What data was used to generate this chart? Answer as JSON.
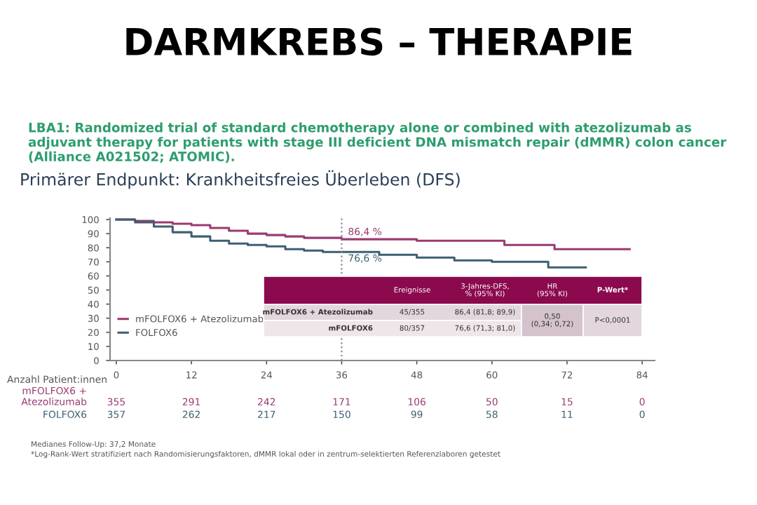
{
  "chart_data": {
    "type": "step",
    "title": "DARMKREBS – THERAPIE",
    "subtitle": "LBA1: Randomized trial of standard chemotherapy alone or combined with atezolizumab as adjuvant therapy for patients with stage III deficient DNA mismatch repair (dMMR) colon cancer (Alliance A021502; ATOMIC).",
    "series": [
      {
        "name": "mFOLFOX6 + Atezolizumab",
        "color": "#9b3a72",
        "x": [
          0,
          3,
          6,
          9,
          12,
          15,
          18,
          21,
          24,
          27,
          30,
          33,
          36,
          42,
          48,
          54,
          62,
          70,
          82
        ],
        "values": [
          100,
          99,
          98,
          97,
          96,
          94,
          92,
          90,
          89,
          88,
          87,
          87,
          86,
          86,
          85,
          85,
          82,
          79,
          79
        ]
      },
      {
        "name": "FOLFOX6",
        "color": "#3e5f73",
        "x": [
          0,
          3,
          6,
          9,
          12,
          15,
          18,
          21,
          24,
          27,
          30,
          33,
          36,
          42,
          48,
          54,
          60,
          69,
          75
        ],
        "values": [
          100,
          98,
          95,
          91,
          88,
          85,
          83,
          82,
          81,
          79,
          78,
          77,
          77,
          75,
          73,
          71,
          70,
          66,
          66
        ]
      }
    ],
    "xlim": [
      -1,
      86
    ],
    "ylim": [
      0,
      101
    ],
    "xticks": [
      0,
      12,
      24,
      36,
      48,
      60,
      72,
      84
    ],
    "yticks": [
      0,
      10,
      20,
      30,
      40,
      50,
      60,
      70,
      80,
      90,
      100
    ],
    "ref_lines": [
      {
        "axis": "x",
        "value": 36,
        "color": "#888888",
        "line_style": "dotted"
      }
    ],
    "legend": "bottom left",
    "grid": false,
    "annotations": [
      "Primärer Endpunkt: Krankheitsfreies Überleben (DFS)",
      {
        "text": "86,4 %",
        "x": 36,
        "y": 86.4
      },
      {
        "text": "76,6 %",
        "x": 36,
        "y": 76.6
      },
      "Ereignisse",
      "3-Jahres-DFS,\n% (95% KI)",
      "HR\n(95% KI)",
      "P-Wert*",
      "mFOLFOX6 + Atezolizumab",
      "45/355",
      "86,4 (81,8; 89,9)",
      "mFOLFOX6",
      "80/357",
      "76,6 (71,3; 81,0)",
      "0,50\n(0,34; 0,72)",
      "P<0,0001",
      "Anzahl Patient:innen",
      "mFOLFOX6 +\nAtezolizumab",
      "FOLFOX6",
      "355",
      "291",
      "242",
      "171",
      "106",
      "50",
      "15",
      "0",
      "357",
      "262",
      "217",
      "150",
      "99",
      "58",
      "11",
      "0",
      "Medianes Follow-Up: 37,2 Monate",
      "*Log-Rank-Wert stratifiziert nach Randomisierungsfaktoren, dMMR lokal oder in zentrum-selektierten Referenzlaboren getestet"
    ]
  }
}
